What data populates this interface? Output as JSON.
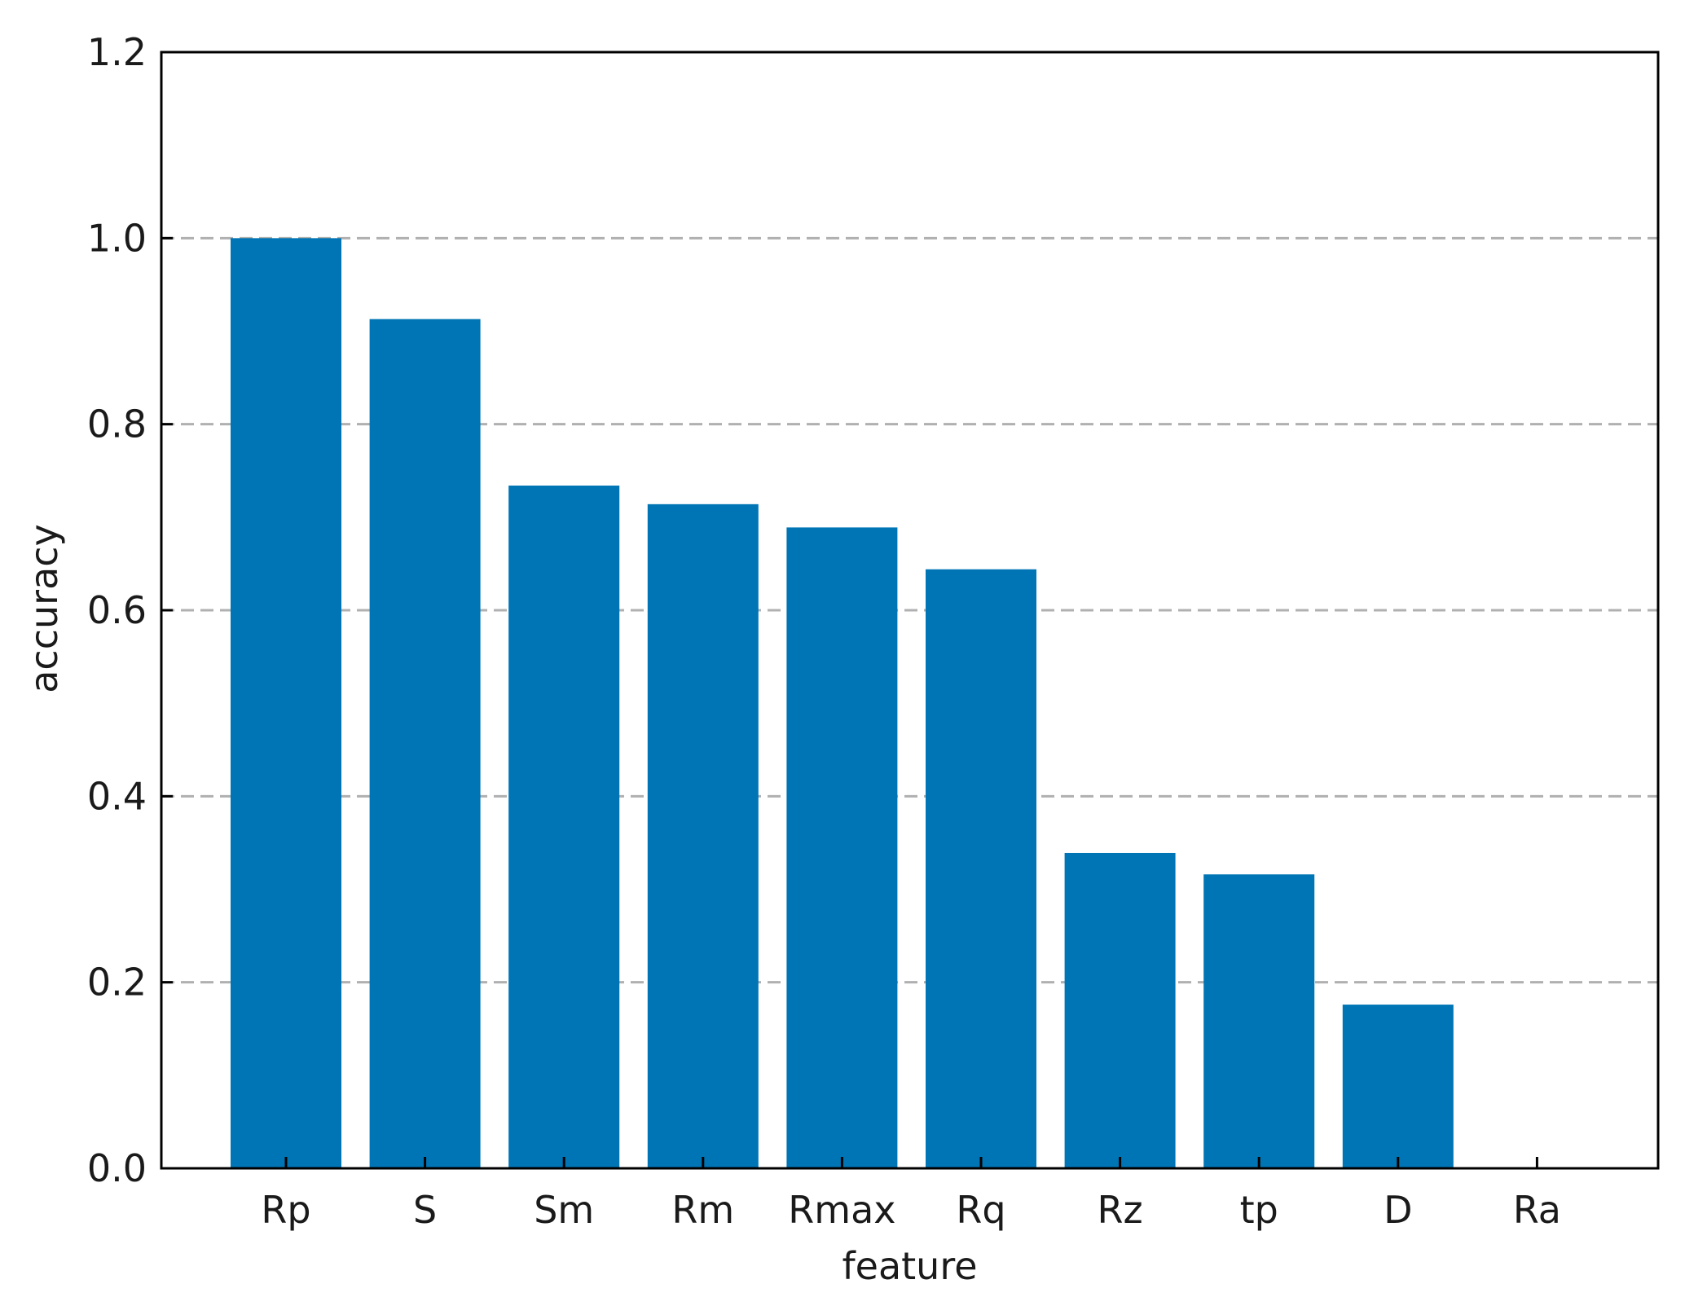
{
  "chart_data": {
    "type": "bar",
    "title": "",
    "xlabel": "feature",
    "ylabel": "accuracy",
    "categories": [
      "Rp",
      "S",
      "Sm",
      "Rm",
      "Rmax",
      "Rq",
      "Rz",
      "tp",
      "D",
      "Ra"
    ],
    "values": [
      1.0,
      0.913,
      0.734,
      0.714,
      0.689,
      0.644,
      0.339,
      0.316,
      0.176,
      0.0
    ],
    "ylim": [
      0,
      1.2
    ],
    "yticks": [
      0.0,
      0.2,
      0.4,
      0.6,
      0.8,
      1.0,
      1.2
    ],
    "ytick_labels": [
      "0.0",
      "0.2",
      "0.4",
      "0.6",
      "0.8",
      "1.0",
      "1.2"
    ],
    "grid": {
      "axis": "y",
      "style": "dashed",
      "levels": [
        0.2,
        0.4,
        0.6,
        0.8,
        1.0
      ]
    },
    "legend": "none",
    "colors": {
      "bar": "#0075b5",
      "grid": "#b0b0b0",
      "axis": "#000000"
    }
  }
}
